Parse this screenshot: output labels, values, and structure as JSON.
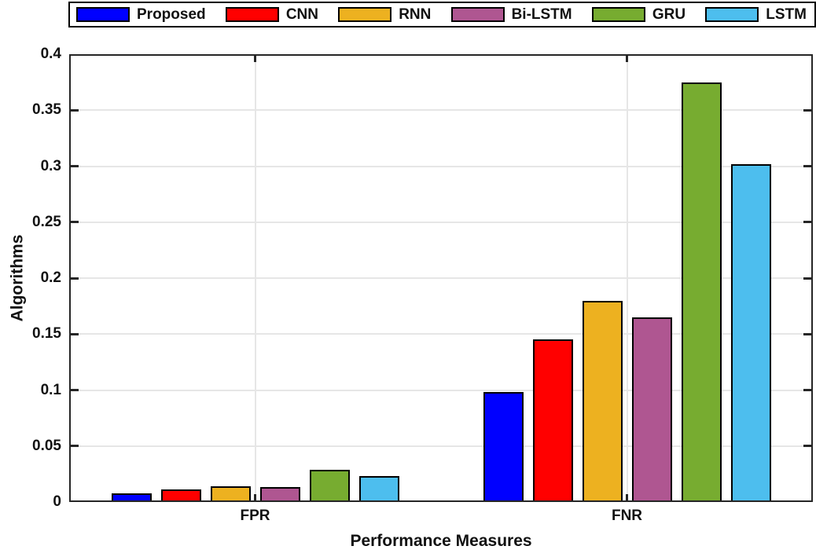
{
  "figure": {
    "background": "#FFFFFF",
    "axis_color": "#262626",
    "grid_color": "#E6E6E6",
    "text_color": "#111111",
    "bar_outline_color": "#000000",
    "legend_border_color": "#000000"
  },
  "chart_data": {
    "type": "bar",
    "title": "",
    "xlabel": "Performance Measures",
    "ylabel": "Algorithms",
    "categories": [
      "FPR",
      "FNR"
    ],
    "series": [
      {
        "name": "Proposed",
        "color": "#0000FF",
        "values": [
          0.008,
          0.098
        ]
      },
      {
        "name": "CNN",
        "color": "#FF0000",
        "values": [
          0.011,
          0.145
        ]
      },
      {
        "name": "RNN",
        "color": "#EDB120",
        "values": [
          0.014,
          0.18
        ]
      },
      {
        "name": "Bi-LSTM",
        "color": "#AF5691",
        "values": [
          0.013,
          0.165
        ]
      },
      {
        "name": "GRU",
        "color": "#77AC30",
        "values": [
          0.029,
          0.375
        ]
      },
      {
        "name": "LSTM",
        "color": "#4DBEEE",
        "values": [
          0.023,
          0.302
        ]
      }
    ],
    "ylim": [
      0,
      0.4
    ],
    "ytick_labels": [
      "0",
      "0.05",
      "0.1",
      "0.15",
      "0.2",
      "0.25",
      "0.3",
      "0.35",
      "0.4"
    ],
    "grid": true,
    "legend_position": "top"
  }
}
